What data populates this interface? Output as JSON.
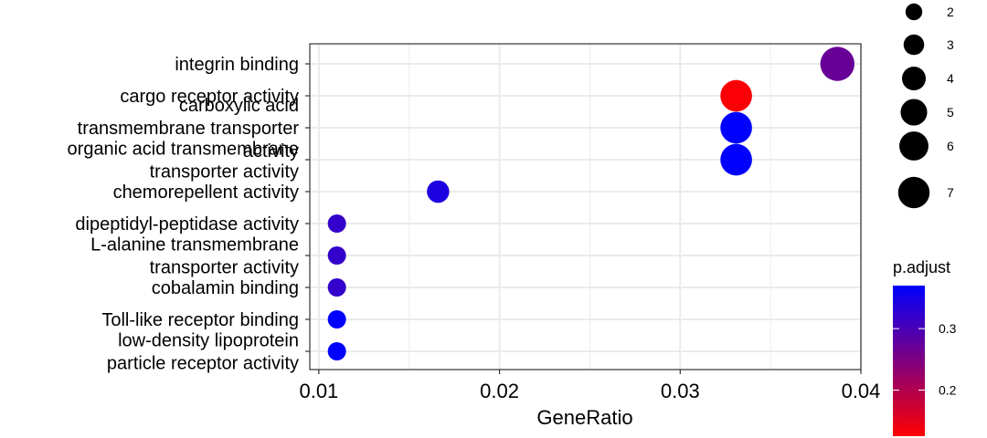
{
  "chart_data": {
    "type": "scatter",
    "xlabel": "GeneRatio",
    "xlim": [
      0.0095,
      0.04
    ],
    "xticks": [
      0.01,
      0.02,
      0.03,
      0.04
    ],
    "xtick_labels": [
      "0.01",
      "0.02",
      "0.03",
      "0.04"
    ],
    "grid": true,
    "categories": [
      [
        "integrin binding"
      ],
      [
        "cargo receptor activity"
      ],
      [
        "carboxylic acid",
        "transmembrane transporter",
        "activity"
      ],
      [
        "organic acid transmembrane",
        "transporter activity"
      ],
      [
        "chemorepellent activity"
      ],
      [
        "dipeptidyl-peptidase activity"
      ],
      [
        "L-alanine transmembrane",
        "transporter activity"
      ],
      [
        "cobalamin binding"
      ],
      [
        "Toll-like receptor binding"
      ],
      [
        "low-density lipoprotein",
        "particle receptor activity"
      ]
    ],
    "points": [
      {
        "term": "integrin binding",
        "gene_ratio": 0.0387,
        "count": 7,
        "p_adjust": 0.27
      },
      {
        "term": "cargo receptor activity",
        "gene_ratio": 0.0331,
        "count": 6,
        "p_adjust": 0.13
      },
      {
        "term": "carboxylic acid transmembrane transporter activity",
        "gene_ratio": 0.0331,
        "count": 6,
        "p_adjust": 0.37
      },
      {
        "term": "organic acid transmembrane transporter activity",
        "gene_ratio": 0.0331,
        "count": 6,
        "p_adjust": 0.37
      },
      {
        "term": "chemorepellent activity",
        "gene_ratio": 0.0166,
        "count": 3,
        "p_adjust": 0.34
      },
      {
        "term": "dipeptidyl-peptidase activity",
        "gene_ratio": 0.011,
        "count": 2,
        "p_adjust": 0.32
      },
      {
        "term": "L-alanine transmembrane transporter activity",
        "gene_ratio": 0.011,
        "count": 2,
        "p_adjust": 0.32
      },
      {
        "term": "cobalamin binding",
        "gene_ratio": 0.011,
        "count": 2,
        "p_adjust": 0.32
      },
      {
        "term": "Toll-like receptor binding",
        "gene_ratio": 0.011,
        "count": 2,
        "p_adjust": 0.37
      },
      {
        "term": "low-density lipoprotein particle receptor activity",
        "gene_ratio": 0.011,
        "count": 2,
        "p_adjust": 0.37
      }
    ],
    "size_legend": {
      "labels": [
        "2",
        "3",
        "4",
        "5",
        "6",
        "7"
      ],
      "values": [
        2,
        3,
        4,
        5,
        6,
        7
      ]
    },
    "color_legend": {
      "title": "p.adjust",
      "range": [
        0.125,
        0.37
      ],
      "ticks": [
        0.2,
        0.3
      ],
      "tick_labels": [
        "0.2",
        "0.3"
      ],
      "low_color": "#ff0000",
      "high_color": "#0000ff"
    }
  }
}
